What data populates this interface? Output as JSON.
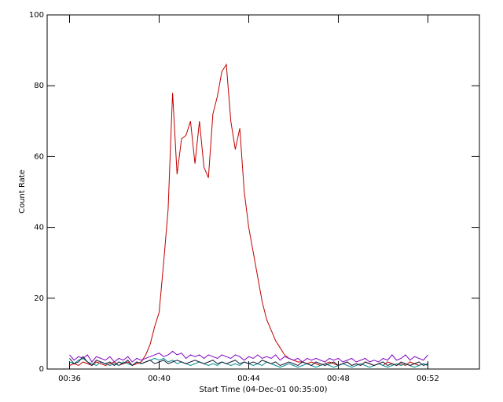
{
  "chart_data": {
    "type": "line",
    "y_label": "Count Rate",
    "x_label": "Start Time (04-Dec-01 00:35:00)",
    "xlim": [
      35,
      54.3
    ],
    "ylim": [
      0,
      100
    ],
    "xticks": [
      {
        "value": 36,
        "label": "00:36"
      },
      {
        "value": 40,
        "label": "00:40"
      },
      {
        "value": 44,
        "label": "00:44"
      },
      {
        "value": 48,
        "label": "00:48"
      },
      {
        "value": 52,
        "label": "00:52"
      }
    ],
    "yticks": [
      0,
      20,
      40,
      60,
      80,
      100
    ],
    "grid": false,
    "x": [
      36,
      36.2,
      36.4,
      36.6,
      36.8,
      37,
      37.2,
      37.4,
      37.6,
      37.8,
      38,
      38.2,
      38.4,
      38.6,
      38.8,
      39,
      39.2,
      39.4,
      39.6,
      39.8,
      40,
      40.2,
      40.4,
      40.6,
      40.8,
      41,
      41.2,
      41.4,
      41.6,
      41.8,
      42,
      42.2,
      42.4,
      42.6,
      42.8,
      43,
      43.2,
      43.4,
      43.6,
      43.8,
      44,
      44.2,
      44.4,
      44.6,
      44.8,
      45,
      45.2,
      45.4,
      45.6,
      45.8,
      46,
      46.2,
      46.4,
      46.6,
      46.8,
      47,
      47.2,
      47.4,
      47.6,
      47.8,
      48,
      48.2,
      48.4,
      48.6,
      48.8,
      49,
      49.2,
      49.4,
      49.6,
      49.8,
      50,
      50.2,
      50.4,
      50.6,
      50.8,
      51,
      51.2,
      51.4,
      51.6,
      51.8,
      52
    ],
    "series": [
      {
        "color": "#c00000",
        "values": [
          1,
          1.5,
          1,
          2,
          1.5,
          1,
          2,
          1.5,
          1,
          1.5,
          2,
          1,
          1.5,
          2,
          1,
          1.5,
          2,
          4,
          7,
          12,
          16,
          30,
          45,
          78,
          55,
          65,
          66,
          70,
          58,
          70,
          57,
          54,
          72,
          77,
          84,
          86,
          70,
          62,
          68,
          50,
          40,
          33,
          26,
          19,
          14,
          11,
          8,
          6,
          4,
          3,
          2.5,
          2,
          2,
          1.5,
          2,
          1.5,
          1,
          1.5,
          2,
          1.5,
          1,
          1.5,
          2,
          1,
          1.5,
          1,
          2,
          1.5,
          1,
          1.5,
          1,
          2,
          1.5,
          1,
          1.5,
          1,
          2,
          1.5,
          1,
          1.5,
          1
        ]
      },
      {
        "color": "#8000c0",
        "values": [
          4,
          2.5,
          3.5,
          3,
          4,
          2,
          3.5,
          3,
          2.5,
          3.5,
          2,
          3,
          2.5,
          3.5,
          2,
          3,
          2.5,
          3,
          3.5,
          4,
          4.5,
          3.5,
          4,
          5,
          4,
          4.5,
          3,
          4,
          3.5,
          4,
          3,
          4,
          3.5,
          3,
          4,
          3.5,
          3,
          4,
          3.5,
          2.5,
          3.5,
          3,
          4,
          3,
          3.5,
          3,
          4,
          2.5,
          3.5,
          3,
          2.5,
          3,
          2,
          3,
          2.5,
          3,
          2.5,
          2,
          3,
          2.5,
          3,
          2,
          2.5,
          3,
          2,
          2.5,
          3,
          2,
          2.5,
          2,
          3,
          2.5,
          4,
          2.5,
          3,
          4,
          2.5,
          3.5,
          3,
          2.5,
          4
        ]
      },
      {
        "color": "#008c8c",
        "values": [
          2,
          1.5,
          2.5,
          3,
          2,
          1.5,
          1,
          2,
          1.5,
          1,
          1.5,
          1,
          2,
          1.5,
          1,
          2,
          1.5,
          2,
          2.5,
          3,
          2.5,
          3,
          2,
          2.5,
          1.5,
          2,
          1.5,
          1,
          1.5,
          2,
          1.5,
          1,
          1.5,
          1,
          2,
          1.5,
          1,
          1.5,
          1,
          2,
          1.5,
          1,
          1.5,
          1,
          2,
          1.5,
          1,
          0.5,
          1,
          1.5,
          1,
          0.5,
          1,
          1.5,
          1,
          0.5,
          1,
          1.5,
          1,
          0.5,
          1,
          1.5,
          1,
          0.5,
          1,
          1.5,
          1,
          0.5,
          1,
          1.5,
          1,
          0.5,
          1,
          1.5,
          1,
          1.5,
          1,
          0.5,
          1,
          1.5,
          1
        ]
      },
      {
        "color": "#1a1a3a",
        "values": [
          3,
          1.5,
          2,
          3.5,
          2,
          1,
          2.5,
          2,
          1.5,
          2,
          1,
          2,
          1.5,
          2.5,
          1,
          2,
          1.5,
          2,
          2.5,
          1.5,
          2,
          2.5,
          1.5,
          2,
          2.5,
          2,
          1.5,
          2,
          2.5,
          2,
          1.5,
          2,
          2.5,
          1.5,
          2,
          1.5,
          2,
          2.5,
          1.5,
          2,
          1.5,
          2,
          1.5,
          2.5,
          2,
          1.5,
          2,
          1,
          1.5,
          2,
          1.5,
          1,
          2,
          1.5,
          1,
          2,
          1.5,
          1,
          1.5,
          2,
          1,
          1.5,
          2,
          1,
          1.5,
          1,
          2,
          1.5,
          1,
          1.5,
          2,
          1,
          1.5,
          1,
          2,
          1.5,
          1,
          1.5,
          2,
          1,
          1.5
        ]
      }
    ]
  }
}
